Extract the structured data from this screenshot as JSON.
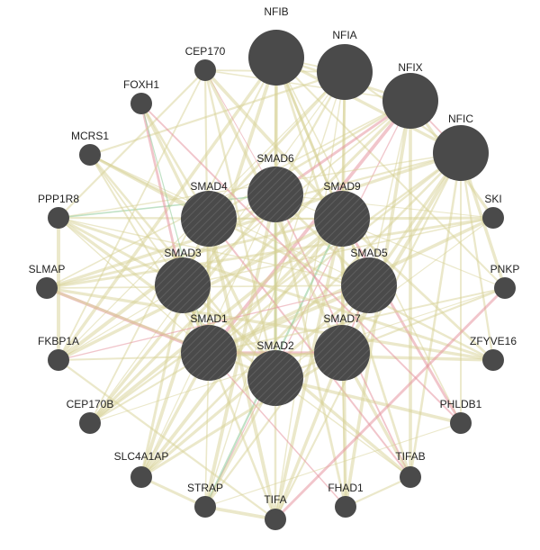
{
  "nodes": [
    {
      "label": "NFIB"
    },
    {
      "label": "NFIA"
    },
    {
      "label": "NFIX"
    },
    {
      "label": "NFIC"
    },
    {
      "label": "SMAD6"
    },
    {
      "label": "SMAD4"
    },
    {
      "label": "SMAD9"
    },
    {
      "label": "SMAD3"
    },
    {
      "label": "SMAD5"
    },
    {
      "label": "SMAD1"
    },
    {
      "label": "SMAD7"
    },
    {
      "label": "SMAD2"
    },
    {
      "label": "CEP170"
    },
    {
      "label": "FOXH1"
    },
    {
      "label": "MCRS1"
    },
    {
      "label": "PPP1R8"
    },
    {
      "label": "SLMAP"
    },
    {
      "label": "FKBP1A"
    },
    {
      "label": "CEP170B"
    },
    {
      "label": "SLC4A1AP"
    },
    {
      "label": "STRAP"
    },
    {
      "label": "TIFA"
    },
    {
      "label": "FHAD1"
    },
    {
      "label": "TIFAB"
    },
    {
      "label": "PHLDB1"
    },
    {
      "label": "ZFYVE16"
    },
    {
      "label": "PNKP"
    },
    {
      "label": "SKI"
    }
  ]
}
